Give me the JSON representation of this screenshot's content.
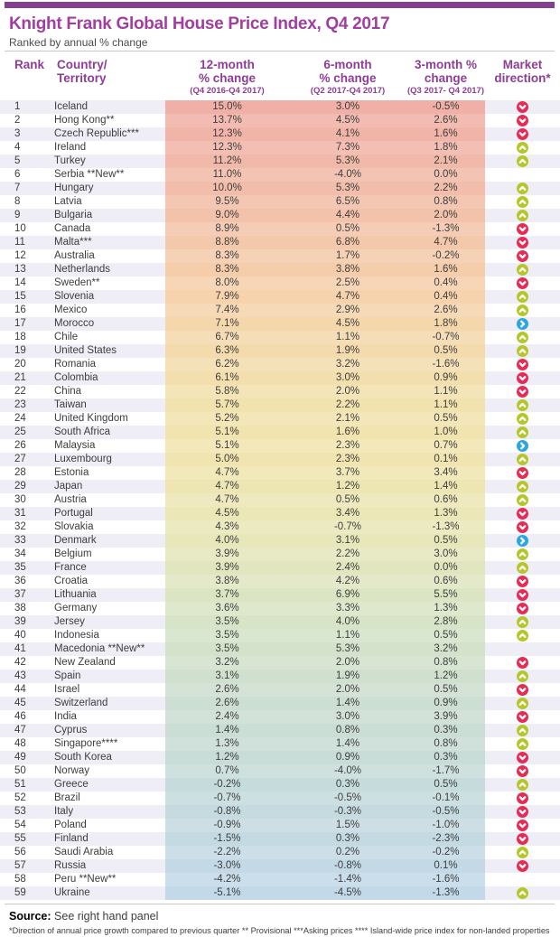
{
  "header": {
    "title": "Knight Frank Global House Price Index, Q4 2017",
    "subtitle": "Ranked by annual % change"
  },
  "columns": {
    "rank": "Rank",
    "country_line1": "Country/",
    "country_line2": "Territory",
    "m12_line1": "12-month",
    "m12_line2": "% change",
    "m12_sub": "(Q4 2016-Q4 2017)",
    "m6_line1": "6-month",
    "m6_line2": "% change",
    "m6_sub": "(Q2 2017-Q4 2017)",
    "m3_line1": "3-month %",
    "m3_line2": "change",
    "m3_sub": "(Q3 2017- Q4 2017)",
    "dir_line1": "Market",
    "dir_line2": "direction*"
  },
  "footer": {
    "source_label": "Source:",
    "source_text": "See right hand panel",
    "footnote": "*Direction of annual price growth compared to previous quarter  ** Provisional ***Asking prices **** Island-wide price index for non-landed properties"
  },
  "style": {
    "brand_bar_color": "#83408f",
    "title_color": "#a13f9e",
    "header_text_color": "#8e3d96",
    "stripe_odd": "#efeef6",
    "stripe_even": "#ffffff",
    "icon_colors": {
      "down": "#e62b55",
      "up": "#b5c62b",
      "right": "#2aa7df"
    },
    "band_stops": [
      {
        "row": 1,
        "color": "#f0b0a8"
      },
      {
        "row": 8,
        "color": "#f2bfaa"
      },
      {
        "row": 15,
        "color": "#f6d3ac"
      },
      {
        "row": 22,
        "color": "#f2e1ad"
      },
      {
        "row": 28,
        "color": "#efe6b0"
      },
      {
        "row": 33,
        "color": "#e8e7ba"
      },
      {
        "row": 38,
        "color": "#d9e5c5"
      },
      {
        "row": 44,
        "color": "#cedfd0"
      },
      {
        "row": 50,
        "color": "#c7dcda"
      },
      {
        "row": 55,
        "color": "#c4dae2"
      },
      {
        "row": 59,
        "color": "#c2d9ea"
      }
    ]
  },
  "chart_data": {
    "type": "table",
    "title": "Knight Frank Global House Price Index, Q4 2017",
    "subtitle": "Ranked by annual % change",
    "columns": [
      "Rank",
      "Country/Territory",
      "12-month % change (Q4 2016-Q4 2017)",
      "6-month % change (Q2 2017-Q4 2017)",
      "3-month % change (Q3 2017- Q4 2017)",
      "Market direction*"
    ],
    "rows": [
      {
        "rank": "1",
        "country": "Iceland",
        "m12": "15.0%",
        "m6": "3.0%",
        "m3": "-0.5%",
        "dir": "down"
      },
      {
        "rank": "2",
        "country": "Hong Kong**",
        "m12": "13.7%",
        "m6": "4.5%",
        "m3": "2.6%",
        "dir": "down"
      },
      {
        "rank": "3",
        "country": "Czech Republic***",
        "m12": "12.3%",
        "m6": "4.1%",
        "m3": "1.6%",
        "dir": "down"
      },
      {
        "rank": "4",
        "country": "Ireland",
        "m12": "12.3%",
        "m6": "7.3%",
        "m3": "1.8%",
        "dir": "up"
      },
      {
        "rank": "5",
        "country": "Turkey",
        "m12": "11.2%",
        "m6": "5.3%",
        "m3": "2.1%",
        "dir": "up"
      },
      {
        "rank": "6",
        "country": "Serbia **New**",
        "m12": "11.0%",
        "m6": "-4.0%",
        "m3": "0.0%",
        "dir": "none"
      },
      {
        "rank": "7",
        "country": "Hungary",
        "m12": "10.0%",
        "m6": "5.3%",
        "m3": "2.2%",
        "dir": "up"
      },
      {
        "rank": "8",
        "country": "Latvia",
        "m12": "9.5%",
        "m6": "6.5%",
        "m3": "0.8%",
        "dir": "up"
      },
      {
        "rank": "9",
        "country": "Bulgaria",
        "m12": "9.0%",
        "m6": "4.4%",
        "m3": "2.0%",
        "dir": "up"
      },
      {
        "rank": "10",
        "country": "Canada",
        "m12": "8.9%",
        "m6": "0.5%",
        "m3": "-1.3%",
        "dir": "down"
      },
      {
        "rank": "11",
        "country": "Malta***",
        "m12": "8.8%",
        "m6": "6.8%",
        "m3": "4.7%",
        "dir": "down"
      },
      {
        "rank": "12",
        "country": "Australia",
        "m12": "8.3%",
        "m6": "1.7%",
        "m3": "-0.2%",
        "dir": "down"
      },
      {
        "rank": "13",
        "country": "Netherlands",
        "m12": "8.3%",
        "m6": "3.8%",
        "m3": "1.6%",
        "dir": "up"
      },
      {
        "rank": "14",
        "country": "Sweden**",
        "m12": "8.0%",
        "m6": "2.5%",
        "m3": "0.4%",
        "dir": "down"
      },
      {
        "rank": "15",
        "country": "Slovenia",
        "m12": "7.9%",
        "m6": "4.7%",
        "m3": "0.4%",
        "dir": "up"
      },
      {
        "rank": "16",
        "country": "Mexico",
        "m12": "7.4%",
        "m6": "2.9%",
        "m3": "2.6%",
        "dir": "up"
      },
      {
        "rank": "17",
        "country": "Morocco",
        "m12": "7.1%",
        "m6": "4.5%",
        "m3": "1.8%",
        "dir": "right"
      },
      {
        "rank": "18",
        "country": "Chile",
        "m12": "6.7%",
        "m6": "1.1%",
        "m3": "-0.7%",
        "dir": "up"
      },
      {
        "rank": "19",
        "country": "United States",
        "m12": "6.3%",
        "m6": "1.9%",
        "m3": "0.5%",
        "dir": "up"
      },
      {
        "rank": "20",
        "country": "Romania",
        "m12": "6.2%",
        "m6": "3.2%",
        "m3": "-1.6%",
        "dir": "down"
      },
      {
        "rank": "21",
        "country": "Colombia",
        "m12": "6.1%",
        "m6": "3.0%",
        "m3": "0.9%",
        "dir": "down"
      },
      {
        "rank": "22",
        "country": "China",
        "m12": "5.8%",
        "m6": "2.0%",
        "m3": "1.1%",
        "dir": "down"
      },
      {
        "rank": "23",
        "country": "Taiwan",
        "m12": "5.7%",
        "m6": "2.2%",
        "m3": "1.1%",
        "dir": "up"
      },
      {
        "rank": "24",
        "country": "United Kingdom",
        "m12": "5.2%",
        "m6": "2.1%",
        "m3": "0.5%",
        "dir": "up"
      },
      {
        "rank": "25",
        "country": "South Africa",
        "m12": "5.1%",
        "m6": "1.6%",
        "m3": "1.0%",
        "dir": "up"
      },
      {
        "rank": "26",
        "country": "Malaysia",
        "m12": "5.1%",
        "m6": "2.3%",
        "m3": "0.7%",
        "dir": "right"
      },
      {
        "rank": "27",
        "country": "Luxembourg",
        "m12": "5.0%",
        "m6": "2.3%",
        "m3": "0.1%",
        "dir": "up"
      },
      {
        "rank": "28",
        "country": "Estonia",
        "m12": "4.7%",
        "m6": "3.7%",
        "m3": "3.4%",
        "dir": "down"
      },
      {
        "rank": "29",
        "country": "Japan",
        "m12": "4.7%",
        "m6": "1.2%",
        "m3": "1.4%",
        "dir": "up"
      },
      {
        "rank": "30",
        "country": "Austria",
        "m12": "4.7%",
        "m6": "0.5%",
        "m3": "0.6%",
        "dir": "up"
      },
      {
        "rank": "31",
        "country": "Portugal",
        "m12": "4.5%",
        "m6": "3.4%",
        "m3": "1.3%",
        "dir": "down"
      },
      {
        "rank": "32",
        "country": "Slovakia",
        "m12": "4.3%",
        "m6": "-0.7%",
        "m3": "-1.3%",
        "dir": "down"
      },
      {
        "rank": "33",
        "country": "Denmark",
        "m12": "4.0%",
        "m6": "3.1%",
        "m3": "0.5%",
        "dir": "right"
      },
      {
        "rank": "34",
        "country": "Belgium",
        "m12": "3.9%",
        "m6": "2.2%",
        "m3": "3.0%",
        "dir": "up"
      },
      {
        "rank": "35",
        "country": "France",
        "m12": "3.9%",
        "m6": "2.4%",
        "m3": "0.0%",
        "dir": "up"
      },
      {
        "rank": "36",
        "country": "Croatia",
        "m12": "3.8%",
        "m6": "4.2%",
        "m3": "0.6%",
        "dir": "down"
      },
      {
        "rank": "37",
        "country": "Lithuania",
        "m12": "3.7%",
        "m6": "6.9%",
        "m3": "5.5%",
        "dir": "down"
      },
      {
        "rank": "38",
        "country": "Germany",
        "m12": "3.6%",
        "m6": "3.3%",
        "m3": "1.3%",
        "dir": "down"
      },
      {
        "rank": "39",
        "country": "Jersey",
        "m12": "3.5%",
        "m6": "4.0%",
        "m3": "2.8%",
        "dir": "up"
      },
      {
        "rank": "40",
        "country": "Indonesia",
        "m12": "3.5%",
        "m6": "1.1%",
        "m3": "0.5%",
        "dir": "up"
      },
      {
        "rank": "41",
        "country": "Macedonia **New**",
        "m12": "3.5%",
        "m6": "5.3%",
        "m3": "3.2%",
        "dir": "none"
      },
      {
        "rank": "42",
        "country": "New Zealand",
        "m12": "3.2%",
        "m6": "2.0%",
        "m3": "0.8%",
        "dir": "down"
      },
      {
        "rank": "43",
        "country": "Spain",
        "m12": "3.1%",
        "m6": "1.9%",
        "m3": "1.2%",
        "dir": "up"
      },
      {
        "rank": "44",
        "country": "Israel",
        "m12": "2.6%",
        "m6": "2.0%",
        "m3": "0.5%",
        "dir": "down"
      },
      {
        "rank": "45",
        "country": "Switzerland",
        "m12": "2.6%",
        "m6": "1.4%",
        "m3": "0.9%",
        "dir": "up"
      },
      {
        "rank": "46",
        "country": "India",
        "m12": "2.4%",
        "m6": "3.0%",
        "m3": "3.9%",
        "dir": "down"
      },
      {
        "rank": "47",
        "country": "Cyprus",
        "m12": "1.4%",
        "m6": "0.8%",
        "m3": "0.3%",
        "dir": "up"
      },
      {
        "rank": "48",
        "country": "Singapore****",
        "m12": "1.3%",
        "m6": "1.4%",
        "m3": "0.8%",
        "dir": "up"
      },
      {
        "rank": "49",
        "country": "South Korea",
        "m12": "1.2%",
        "m6": "0.9%",
        "m3": "0.3%",
        "dir": "down"
      },
      {
        "rank": "50",
        "country": "Norway",
        "m12": "0.7%",
        "m6": "-4.0%",
        "m3": "-1.7%",
        "dir": "down"
      },
      {
        "rank": "51",
        "country": "Greece",
        "m12": "-0.2%",
        "m6": "0.3%",
        "m3": "0.5%",
        "dir": "up"
      },
      {
        "rank": "52",
        "country": "Brazil",
        "m12": "-0.7%",
        "m6": "-0.5%",
        "m3": "-0.1%",
        "dir": "down"
      },
      {
        "rank": "53",
        "country": "Italy",
        "m12": "-0.8%",
        "m6": "-0.3%",
        "m3": "-0.5%",
        "dir": "down"
      },
      {
        "rank": "54",
        "country": "Poland",
        "m12": "-0.9%",
        "m6": "1.5%",
        "m3": "-1.0%",
        "dir": "down"
      },
      {
        "rank": "55",
        "country": "Finland",
        "m12": "-1.5%",
        "m6": "0.3%",
        "m3": "-2.3%",
        "dir": "down"
      },
      {
        "rank": "56",
        "country": "Saudi Arabia",
        "m12": "-2.2%",
        "m6": "0.2%",
        "m3": "-0.2%",
        "dir": "up"
      },
      {
        "rank": "57",
        "country": "Russia",
        "m12": "-3.0%",
        "m6": "-0.8%",
        "m3": "0.1%",
        "dir": "down"
      },
      {
        "rank": "58",
        "country": "Peru **New**",
        "m12": "-4.2%",
        "m6": "-1.4%",
        "m3": "-1.6%",
        "dir": "none"
      },
      {
        "rank": "59",
        "country": "Ukraine",
        "m12": "-5.1%",
        "m6": "-4.5%",
        "m3": "-1.3%",
        "dir": "up"
      }
    ]
  }
}
